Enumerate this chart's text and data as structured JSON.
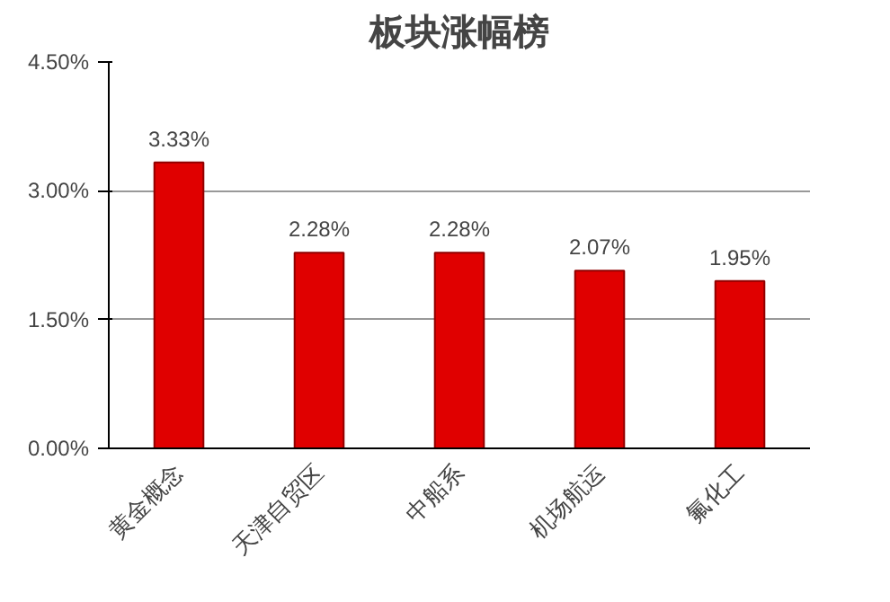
{
  "chart_data": {
    "type": "bar",
    "title": "板块涨幅榜",
    "categories": [
      "黄金概念",
      "天津自贸区",
      "中船系",
      "机场航运",
      "氟化工"
    ],
    "values": [
      3.33,
      2.28,
      2.28,
      2.07,
      1.95
    ],
    "value_labels": [
      "3.33%",
      "2.28%",
      "2.28%",
      "2.07%",
      "1.95%"
    ],
    "color": "#e00000",
    "ylim": [
      0,
      4.5
    ],
    "yticks": [
      {
        "value": 0,
        "label": "0.00%"
      },
      {
        "value": 1.5,
        "label": "1.50%"
      },
      {
        "value": 3,
        "label": "3.00%"
      },
      {
        "value": 4.5,
        "label": "4.50%"
      }
    ],
    "grid": "y"
  }
}
